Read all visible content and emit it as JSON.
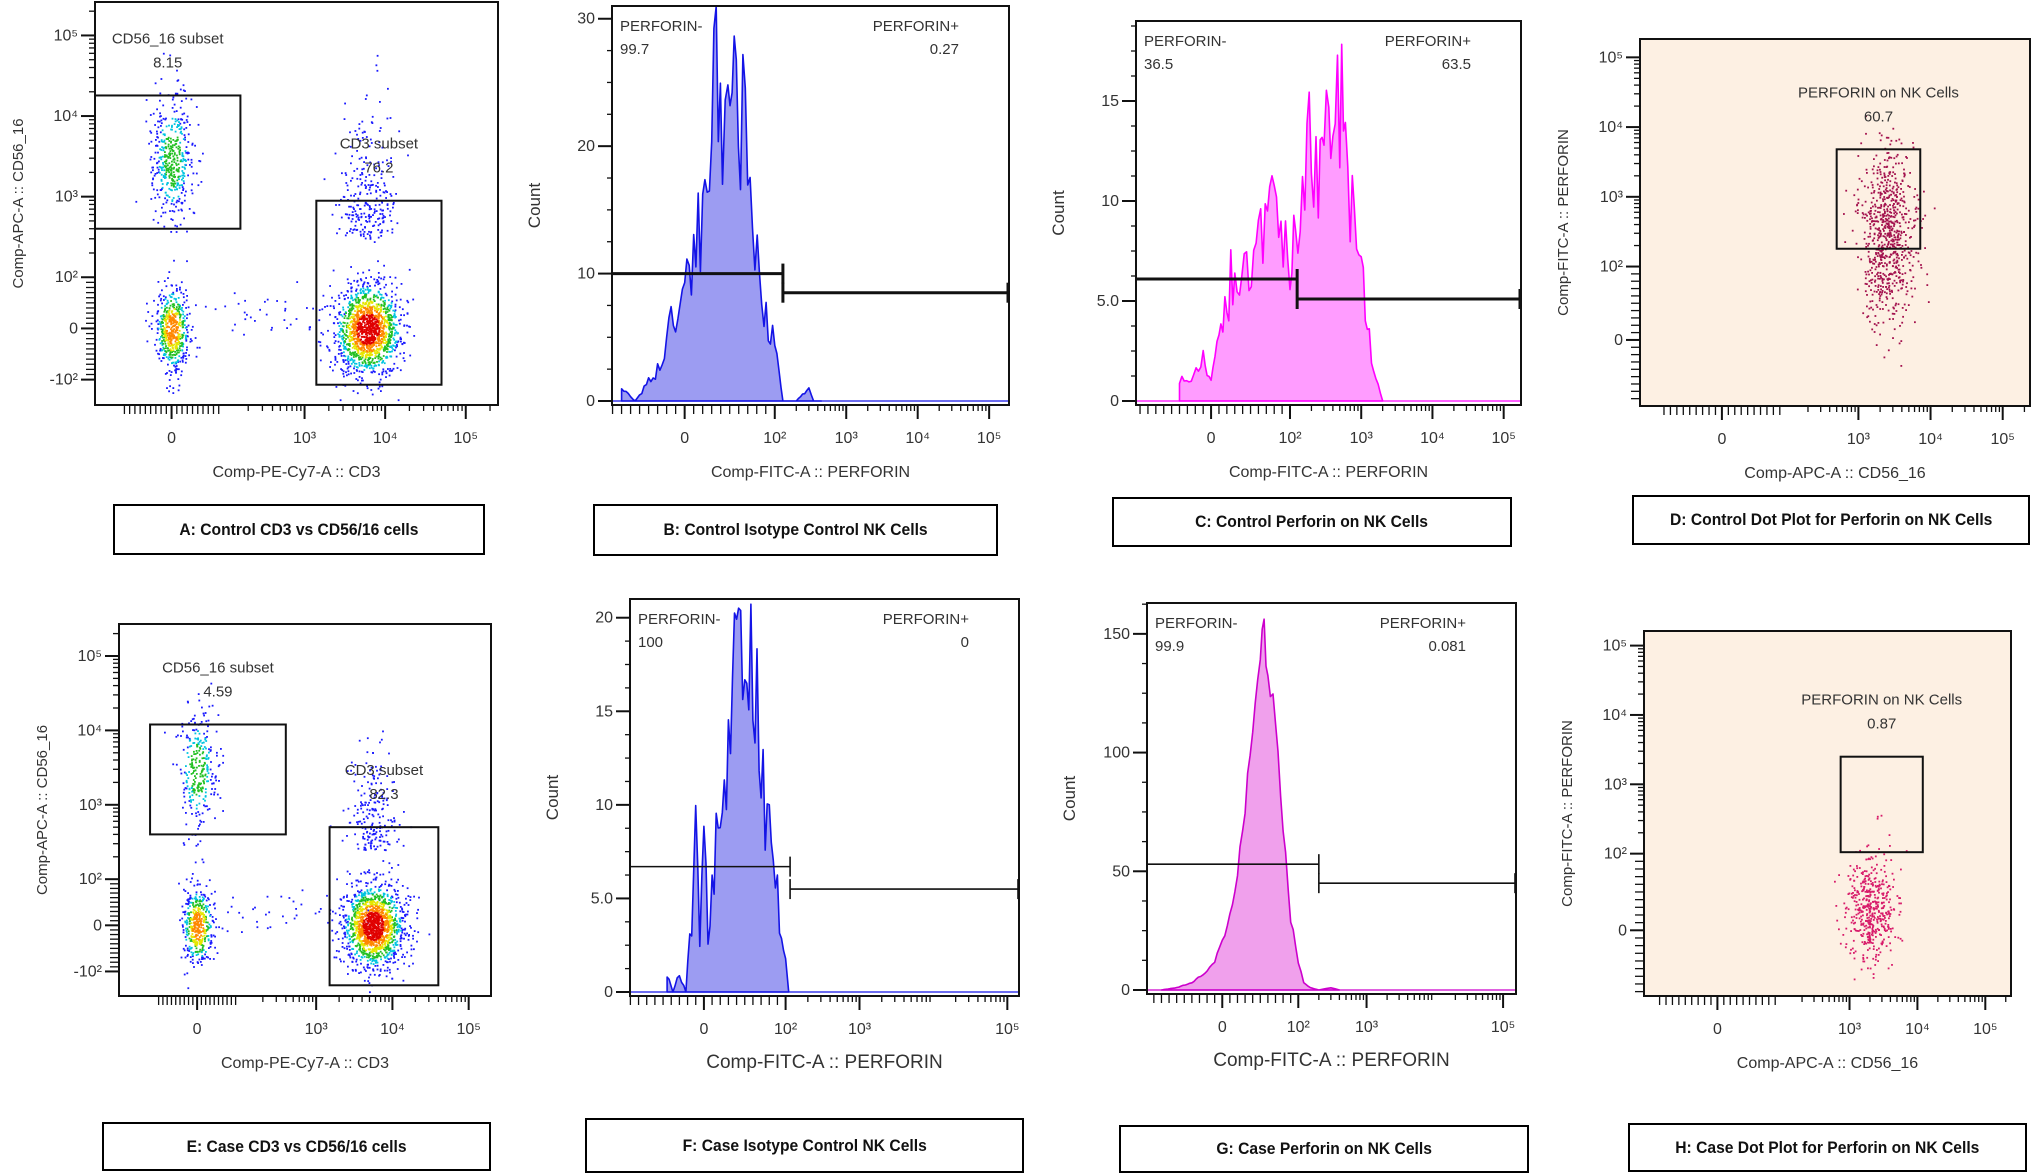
{
  "chart_data": [
    {
      "id": "A",
      "type": "scatter",
      "caption": "A: Control CD3 vs CD56/16 cells",
      "xlabel": "Comp-PE-Cy7-A :: CD3",
      "ylabel": "Comp-APC-A :: CD56_16",
      "x_ticks": [
        {
          "value": 0,
          "label": "0"
        },
        {
          "value": 1000,
          "label": "10³"
        },
        {
          "value": 10000,
          "label": "10⁴"
        },
        {
          "value": 100000,
          "label": "10⁵"
        }
      ],
      "y_ticks": [
        {
          "value": -100,
          "label": "-10²"
        },
        {
          "value": 0,
          "label": "0"
        },
        {
          "value": 100,
          "label": "10²"
        },
        {
          "value": 1000,
          "label": "10³"
        },
        {
          "value": 10000,
          "label": "10⁴"
        },
        {
          "value": 100000,
          "label": "10⁵"
        }
      ],
      "gates": [
        {
          "name": "CD56_16 subset",
          "percent": "8.15",
          "x_range": [
            -150,
            160
          ],
          "y_range": [
            400,
            18000
          ]
        },
        {
          "name": "CD3 subset",
          "percent": "76.2",
          "x_range": [
            1400,
            50000
          ],
          "y_range": [
            -110,
            890
          ]
        }
      ],
      "populations": [
        {
          "center": [
            0,
            3000
          ],
          "events": 450
        },
        {
          "center": [
            0,
            0
          ],
          "events": 550
        },
        {
          "center": [
            6000,
            0
          ],
          "events": 1500
        },
        {
          "center": [
            6000,
            300
          ],
          "events": 260
        },
        {
          "center": [
            300,
            30
          ],
          "events": 45
        }
      ],
      "dot_coloring": "density"
    },
    {
      "id": "B",
      "type": "histogram",
      "caption": "B: Control Isotype Control NK Cells",
      "xlabel": "Comp-FITC-A :: PERFORIN",
      "ylabel": "Count",
      "x_ticks": [
        {
          "value": 0,
          "label": "0"
        },
        {
          "value": 100,
          "label": "10²"
        },
        {
          "value": 1000,
          "label": "10³"
        },
        {
          "value": 10000,
          "label": "10⁴"
        },
        {
          "value": 100000,
          "label": "10⁵"
        }
      ],
      "y_ticks": [
        {
          "value": 0,
          "label": "0"
        },
        {
          "value": 10,
          "label": "10"
        },
        {
          "value": 20,
          "label": "20"
        },
        {
          "value": 30,
          "label": "30"
        }
      ],
      "ylim": [
        0,
        31
      ],
      "gates": [
        {
          "name": "PERFORIN-",
          "percent": "99.7",
          "x_range": [
            -100,
            130
          ],
          "y": 10
        },
        {
          "name": "PERFORIN+",
          "percent": "0.27",
          "x_range": [
            130,
            262144
          ],
          "y": 8.5
        }
      ],
      "x": [
        -70,
        -55,
        -45,
        -35,
        -25,
        -15,
        -5,
        5,
        15,
        25,
        35,
        42,
        48,
        55,
        62,
        70,
        78,
        88,
        100,
        115,
        130,
        200,
        300,
        350,
        450
      ],
      "counts": [
        1,
        0,
        1,
        2,
        3,
        6,
        8,
        10,
        13,
        17,
        26,
        21,
        30,
        25,
        22,
        20,
        12,
        8,
        4,
        2,
        0,
        0,
        1,
        0,
        0
      ],
      "fill_color": "#9c9cf2",
      "line_color": "#1414e6"
    },
    {
      "id": "C",
      "type": "histogram",
      "caption": "C: Control Perforin on NK Cells",
      "xlabel": "Comp-FITC-A :: PERFORIN",
      "ylabel": "Count",
      "x_ticks": [
        {
          "value": 0,
          "label": "0"
        },
        {
          "value": 100,
          "label": "10²"
        },
        {
          "value": 1000,
          "label": "10³"
        },
        {
          "value": 10000,
          "label": "10⁴"
        },
        {
          "value": 100000,
          "label": "10⁵"
        }
      ],
      "y_ticks": [
        {
          "value": 0,
          "label": "0"
        },
        {
          "value": 5,
          "label": "5.0"
        },
        {
          "value": 10,
          "label": "10"
        },
        {
          "value": 15,
          "label": "15"
        }
      ],
      "ylim": [
        0,
        19
      ],
      "gates": [
        {
          "name": "PERFORIN-",
          "percent": "36.5",
          "x_range": [
            -100,
            126
          ],
          "y": 6.1
        },
        {
          "name": "PERFORIN+",
          "percent": "63.5",
          "x_range": [
            126,
            262144
          ],
          "y": 5.1
        }
      ],
      "x": [
        -40,
        -25,
        -10,
        0,
        10,
        20,
        30,
        45,
        60,
        80,
        100,
        120,
        150,
        200,
        250,
        300,
        350,
        400,
        500,
        600,
        700,
        800,
        1000,
        1300,
        1600,
        2000
      ],
      "counts": [
        1,
        1,
        2,
        1,
        3,
        5,
        7,
        6,
        8,
        9,
        7,
        9,
        10,
        13,
        12,
        17,
        18,
        14,
        16,
        12,
        10,
        8,
        7,
        3,
        1,
        0
      ],
      "fill_color": "#ff9cff",
      "line_color": "#ff00ff"
    },
    {
      "id": "D",
      "type": "scatter",
      "caption": "D: Control Dot Plot for Perforin on NK Cells",
      "xlabel": "Comp-APC-A :: CD56_16",
      "ylabel": "Comp-FITC-A :: PERFORIN",
      "x_ticks": [
        {
          "value": 0,
          "label": "0"
        },
        {
          "value": 1000,
          "label": "10³"
        },
        {
          "value": 10000,
          "label": "10⁴"
        },
        {
          "value": 100000,
          "label": "10⁵"
        }
      ],
      "y_ticks": [
        {
          "value": 0,
          "label": "0"
        },
        {
          "value": 100,
          "label": "10²"
        },
        {
          "value": 1000,
          "label": "10³"
        },
        {
          "value": 10000,
          "label": "10⁴"
        },
        {
          "value": 100000,
          "label": "10⁵"
        }
      ],
      "gates": [
        {
          "name": "PERFORIN  on NK Cells",
          "percent": "60.7",
          "x_range": [
            500,
            7200
          ],
          "y_range": [
            180,
            4800
          ]
        }
      ],
      "populations": [
        {
          "center": [
            2500,
            300
          ],
          "events": 750
        }
      ],
      "dot_coloring": "single",
      "dot_color": "#a3124e",
      "background_color": "#fdf0e3"
    },
    {
      "id": "E",
      "type": "scatter",
      "caption": "E: Case CD3 vs CD56/16 cells",
      "xlabel": "Comp-PE-Cy7-A :: CD3",
      "ylabel": "Comp-APC-A :: CD56_16",
      "x_ticks": [
        {
          "value": 0,
          "label": "0"
        },
        {
          "value": 1000,
          "label": "10³"
        },
        {
          "value": 10000,
          "label": "10⁴"
        },
        {
          "value": 100000,
          "label": "10⁵"
        }
      ],
      "y_ticks": [
        {
          "value": -100,
          "label": "-10²"
        },
        {
          "value": 0,
          "label": "0"
        },
        {
          "value": 100,
          "label": "10²"
        },
        {
          "value": 1000,
          "label": "10³"
        },
        {
          "value": 10000,
          "label": "10⁴"
        },
        {
          "value": 100000,
          "label": "10⁵"
        }
      ],
      "gates": [
        {
          "name": "CD56_16 subset",
          "percent": "4.59",
          "x_range": [
            -110,
            400
          ],
          "y_range": [
            400,
            12000
          ]
        },
        {
          "name": "CD3 subset",
          "percent": "82.3",
          "x_range": [
            1500,
            40000
          ],
          "y_range": [
            -130,
            500
          ]
        }
      ],
      "populations": [
        {
          "center": [
            0,
            3000
          ],
          "events": 300
        },
        {
          "center": [
            0,
            0
          ],
          "events": 450
        },
        {
          "center": [
            5500,
            0
          ],
          "events": 1500
        },
        {
          "center": [
            5500,
            250
          ],
          "events": 200
        },
        {
          "center": [
            300,
            30
          ],
          "events": 40
        }
      ],
      "dot_coloring": "density"
    },
    {
      "id": "F",
      "type": "histogram",
      "caption": "F: Case Isotype Control NK Cells",
      "xlabel": "Comp-FITC-A :: PERFORIN",
      "ylabel": "Count",
      "x_ticks": [
        {
          "value": 0,
          "label": "0"
        },
        {
          "value": 100,
          "label": "10²"
        },
        {
          "value": 1000,
          "label": "10³"
        },
        {
          "value": 100000,
          "label": "10⁵"
        }
      ],
      "y_ticks": [
        {
          "value": 0,
          "label": "0"
        },
        {
          "value": 5,
          "label": "5.0"
        },
        {
          "value": 10,
          "label": "10"
        },
        {
          "value": 15,
          "label": "15"
        },
        {
          "value": 20,
          "label": "20"
        }
      ],
      "ylim": [
        0,
        21
      ],
      "gates": [
        {
          "name": "PERFORIN-",
          "percent": "100",
          "x_range": [
            -100,
            115
          ],
          "y": 6.7
        },
        {
          "name": "PERFORIN+",
          "percent": "0",
          "x_range": [
            115,
            262144
          ],
          "y": 5.5
        }
      ],
      "x": [
        -45,
        -38,
        -30,
        -22,
        -15,
        -10,
        -5,
        0,
        5,
        10,
        20,
        30,
        40,
        50,
        55,
        60,
        70,
        80,
        90,
        100,
        110
      ],
      "counts": [
        1,
        0,
        1,
        0,
        4,
        9,
        2,
        9,
        3,
        5,
        10,
        14,
        17,
        20,
        17,
        18,
        12,
        8,
        5,
        2,
        0
      ],
      "fill_color": "#9c9cf2",
      "line_color": "#1414e6"
    },
    {
      "id": "G",
      "type": "histogram",
      "caption": "G: Case Perforin on NK Cells",
      "xlabel": "Comp-FITC-A :: PERFORIN",
      "ylabel": "Count",
      "x_ticks": [
        {
          "value": 0,
          "label": "0"
        },
        {
          "value": 100,
          "label": "10²"
        },
        {
          "value": 1000,
          "label": "10³"
        },
        {
          "value": 100000,
          "label": "10⁵"
        }
      ],
      "y_ticks": [
        {
          "value": 0,
          "label": "0"
        },
        {
          "value": 50,
          "label": "50"
        },
        {
          "value": 100,
          "label": "100"
        },
        {
          "value": 150,
          "label": "150"
        }
      ],
      "ylim": [
        0,
        163
      ],
      "gates": [
        {
          "name": "PERFORIN-",
          "percent": "99.9",
          "x_range": [
            -100,
            200
          ],
          "y": 53
        },
        {
          "name": "PERFORIN+",
          "percent": "0.081",
          "x_range": [
            200,
            262144
          ],
          "y": 45
        }
      ],
      "x": [
        -80,
        -60,
        -40,
        -20,
        -10,
        0,
        10,
        20,
        30,
        40,
        50,
        55,
        60,
        70,
        80,
        90,
        100,
        120,
        150,
        200,
        300,
        400
      ],
      "counts": [
        0,
        1,
        3,
        8,
        12,
        20,
        32,
        50,
        75,
        110,
        145,
        150,
        140,
        110,
        70,
        30,
        12,
        3,
        1,
        0,
        1,
        0
      ],
      "fill_color": "#f0a0ec",
      "line_color": "#cc00cc"
    },
    {
      "id": "H",
      "type": "scatter",
      "caption": "H: Case Dot Plot for Perforin on NK Cells",
      "xlabel": "Comp-APC-A :: CD56_16",
      "ylabel": "Comp-FITC-A :: PERFORIN",
      "x_ticks": [
        {
          "value": 0,
          "label": "0"
        },
        {
          "value": 1000,
          "label": "10³"
        },
        {
          "value": 10000,
          "label": "10⁴"
        },
        {
          "value": 100000,
          "label": "10⁵"
        }
      ],
      "y_ticks": [
        {
          "value": 0,
          "label": "0"
        },
        {
          "value": 100,
          "label": "10²"
        },
        {
          "value": 1000,
          "label": "10³"
        },
        {
          "value": 10000,
          "label": "10⁴"
        },
        {
          "value": 100000,
          "label": "10⁵"
        }
      ],
      "gates": [
        {
          "name": "PERFORIN on NK Cells",
          "percent": "0.87",
          "x_range": [
            740,
            12000
          ],
          "y_range": [
            105,
            2500
          ]
        }
      ],
      "populations": [
        {
          "center": [
            2000,
            30
          ],
          "events": 480
        }
      ],
      "dot_coloring": "single",
      "dot_color": "#d81b6a",
      "background_color": "#fdf0e3"
    }
  ]
}
